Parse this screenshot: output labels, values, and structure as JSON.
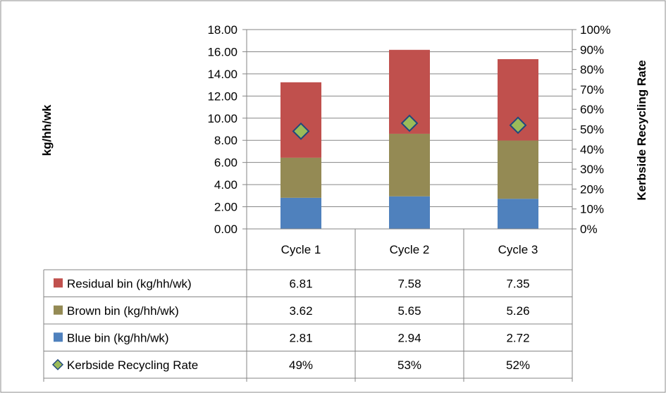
{
  "chart_data": {
    "type": "bar",
    "stacked": true,
    "categories": [
      "Cycle 1",
      "Cycle 2",
      "Cycle 3"
    ],
    "series": [
      {
        "name": "Blue bin (kg/hh/wk)",
        "values": [
          2.81,
          2.94,
          2.72
        ],
        "color": "#4F81BD",
        "axis": "left",
        "kind": "bar"
      },
      {
        "name": "Brown bin  (kg/hh/wk)",
        "values": [
          3.62,
          5.65,
          5.26
        ],
        "color": "#948A54",
        "axis": "left",
        "kind": "bar"
      },
      {
        "name": "Residual bin (kg/hh/wk)",
        "values": [
          6.81,
          7.58,
          7.35
        ],
        "color": "#C0504D",
        "axis": "left",
        "kind": "bar"
      },
      {
        "name": "Kerbside Recycling Rate",
        "values": [
          0.49,
          0.53,
          0.52
        ],
        "color": "#9BBB59",
        "marker_edge": "#1F497D",
        "axis": "right",
        "kind": "marker-diamond"
      }
    ],
    "ylabel": "kg/hh/wk",
    "y2label": "Kerbside Recycling  Rate",
    "ylim": [
      0,
      18
    ],
    "y2lim": [
      0,
      1
    ],
    "yticks": [
      "0.00",
      "2.00",
      "4.00",
      "6.00",
      "8.00",
      "10.00",
      "12.00",
      "14.00",
      "16.00",
      "18.00"
    ],
    "y2ticks": [
      "0%",
      "10%",
      "20%",
      "30%",
      "40%",
      "50%",
      "60%",
      "70%",
      "80%",
      "90%",
      "100%"
    ],
    "grid": true,
    "data_table": {
      "legend_order": [
        2,
        1,
        0,
        3
      ],
      "rows": [
        {
          "label": "Residual bin (kg/hh/wk)",
          "cells": [
            "6.81",
            "7.58",
            "7.35"
          ]
        },
        {
          "label": "Brown bin  (kg/hh/wk)",
          "cells": [
            "3.62",
            "5.65",
            "5.26"
          ]
        },
        {
          "label": "Blue bin (kg/hh/wk)",
          "cells": [
            "2.81",
            "2.94",
            "2.72"
          ]
        },
        {
          "label": "Kerbside Recycling Rate",
          "cells": [
            "49%",
            "53%",
            "52%"
          ]
        }
      ]
    }
  }
}
